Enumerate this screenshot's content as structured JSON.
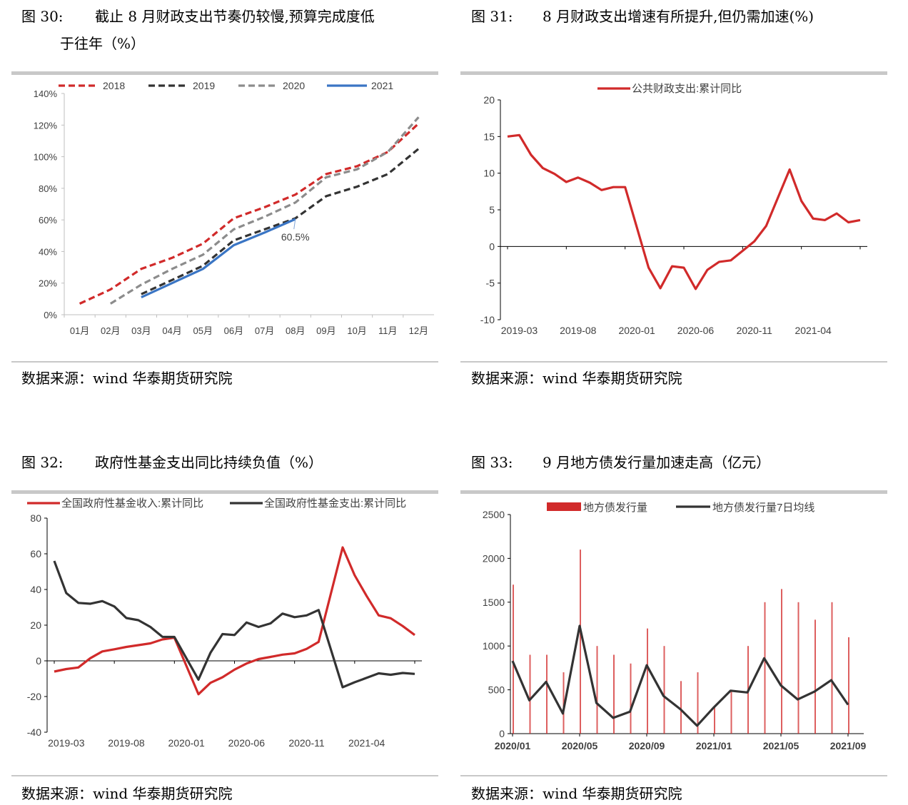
{
  "figures": [
    {
      "num": "图 30:",
      "title_line1": "截止 8 月财政支出节奏仍较慢,预算完成度低",
      "title_line2": "于往年（%）",
      "source": "数据来源：wind  华泰期货研究院"
    },
    {
      "num": "图 31:",
      "title_line1": "8 月财政支出增速有所提升,但仍需加速(%)",
      "source": "数据来源：wind  华泰期货研究院"
    },
    {
      "num": "图 32:",
      "title_line1": "政府性基金支出同比持续负值（%）",
      "source": "数据来源：wind  华泰期货研究院"
    },
    {
      "num": "图 33:",
      "title_line1": "9 月地方债发行量加速走高（亿元）",
      "source": "数据来源：wind  华泰期货研究院"
    }
  ],
  "chart_data": [
    {
      "type": "line",
      "categories": [
        "01月",
        "02月",
        "03月",
        "04月",
        "05月",
        "06月",
        "07月",
        "08月",
        "09月",
        "10月",
        "11月",
        "12月"
      ],
      "ylim": [
        0,
        140
      ],
      "yticks": [
        0,
        20,
        40,
        60,
        80,
        100,
        120,
        140
      ],
      "ytick_labels": [
        "0%",
        "20%",
        "40%",
        "60%",
        "80%",
        "100%",
        "120%",
        "140%"
      ],
      "annotation": "60.5%",
      "series": [
        {
          "name": "2018",
          "color": "#d12a2a",
          "dashed": true,
          "values": [
            7,
            16,
            29,
            36,
            45,
            61,
            68,
            76,
            89,
            94,
            103,
            121
          ]
        },
        {
          "name": "2019",
          "color": "#333333",
          "dashed": true,
          "values": [
            null,
            null,
            13,
            22,
            31,
            47,
            54,
            61,
            75,
            81,
            89,
            105
          ]
        },
        {
          "name": "2020",
          "color": "#8c8c8c",
          "dashed": true,
          "values": [
            null,
            7,
            19,
            29,
            38,
            54,
            62,
            71,
            87,
            92,
            103,
            125
          ]
        },
        {
          "name": "2021",
          "color": "#3a75c4",
          "dashed": false,
          "values": [
            null,
            null,
            11,
            20,
            29,
            44,
            52,
            60.5,
            null,
            null,
            null,
            null
          ]
        }
      ]
    },
    {
      "type": "line",
      "xtick_labels": [
        "2019-03",
        "2019-08",
        "2020-01",
        "2020-06",
        "2020-11",
        "2021-04"
      ],
      "ylim": [
        -10,
        20
      ],
      "yticks": [
        -10,
        -5,
        0,
        5,
        10,
        15,
        20
      ],
      "series": [
        {
          "name": "公共财政支出:累计同比",
          "color": "#d12a2a",
          "x": [
            "2019-02",
            "2019-03",
            "2019-04",
            "2019-05",
            "2019-06",
            "2019-07",
            "2019-08",
            "2019-09",
            "2019-10",
            "2019-11",
            "2019-12",
            "2020-02",
            "2020-03",
            "2020-04",
            "2020-05",
            "2020-06",
            "2020-07",
            "2020-08",
            "2020-09",
            "2020-10",
            "2020-11",
            "2020-12",
            "2021-02",
            "2021-03",
            "2021-04",
            "2021-05",
            "2021-06",
            "2021-07",
            "2021-08"
          ],
          "values": [
            15.0,
            15.2,
            12.5,
            10.7,
            9.9,
            8.8,
            9.4,
            8.7,
            7.7,
            8.1,
            8.1,
            -2.9,
            -5.7,
            -2.7,
            -2.9,
            -5.8,
            -3.2,
            -2.1,
            -1.9,
            -0.6,
            0.7,
            2.8,
            10.5,
            6.2,
            3.8,
            3.6,
            4.5,
            3.3,
            3.6
          ]
        }
      ]
    },
    {
      "type": "line",
      "xtick_labels": [
        "2019-03",
        "2019-08",
        "2020-01",
        "2020-06",
        "2020-11",
        "2021-04"
      ],
      "ylim": [
        -40,
        80
      ],
      "yticks": [
        -40,
        -20,
        0,
        20,
        40,
        60,
        80
      ],
      "series": [
        {
          "name": "全国政府性基金收入:累计同比",
          "color": "#d12a2a",
          "x": [
            "2019-02",
            "2019-03",
            "2019-04",
            "2019-05",
            "2019-06",
            "2019-07",
            "2019-08",
            "2019-09",
            "2019-10",
            "2019-11",
            "2019-12",
            "2020-02",
            "2020-03",
            "2020-04",
            "2020-05",
            "2020-06",
            "2020-07",
            "2020-08",
            "2020-09",
            "2020-10",
            "2020-11",
            "2020-12",
            "2021-02",
            "2021-03",
            "2021-04",
            "2021-05",
            "2021-06",
            "2021-07",
            "2021-08"
          ],
          "values": [
            -6.0,
            -4.6,
            -3.7,
            1.5,
            5.3,
            6.5,
            7.8,
            8.8,
            9.8,
            12.0,
            13.0,
            -18.7,
            -12.3,
            -9.2,
            -4.9,
            -1.5,
            1.0,
            2.2,
            3.5,
            4.2,
            6.7,
            10.6,
            63.6,
            48.0,
            36.3,
            25.5,
            23.9,
            19.5,
            14.5
          ]
        },
        {
          "name": "全国政府性基金支出:累计同比",
          "color": "#333333",
          "x": [
            "2019-02",
            "2019-03",
            "2019-04",
            "2019-05",
            "2019-06",
            "2019-07",
            "2019-08",
            "2019-09",
            "2019-10",
            "2019-11",
            "2019-12",
            "2020-02",
            "2020-03",
            "2020-04",
            "2020-05",
            "2020-06",
            "2020-07",
            "2020-08",
            "2020-09",
            "2020-10",
            "2020-11",
            "2020-12",
            "2021-02",
            "2021-03",
            "2021-04",
            "2021-05",
            "2021-06",
            "2021-07",
            "2021-08"
          ],
          "values": [
            56.0,
            38.0,
            32.5,
            32.0,
            33.5,
            30.5,
            24.0,
            22.8,
            19.0,
            13.5,
            13.4,
            -10.5,
            4.5,
            15.0,
            14.5,
            21.5,
            19.0,
            21.0,
            26.5,
            24.5,
            25.5,
            28.5,
            -14.8,
            -12.0,
            -9.5,
            -7.0,
            -7.8,
            -6.8,
            -7.3
          ]
        }
      ]
    },
    {
      "type": "bar+line",
      "xtick_labels": [
        "2020/01",
        "2020/05",
        "2020/09",
        "2021/01",
        "2021/05",
        "2021/09"
      ],
      "ylim": [
        0,
        2500
      ],
      "yticks": [
        0,
        500,
        1000,
        1500,
        2000,
        2500
      ],
      "series": [
        {
          "name": "地方债发行量",
          "kind": "bar",
          "color": "#d12a2a",
          "x": [
            "2020-01",
            "2020-02",
            "2020-03",
            "2020-04",
            "2020-05",
            "2020-06",
            "2020-07",
            "2020-08",
            "2020-09",
            "2020-10",
            "2020-11",
            "2020-12",
            "2021-01",
            "2021-02",
            "2021-03",
            "2021-04",
            "2021-05",
            "2021-06",
            "2021-07",
            "2021-08",
            "2021-09"
          ],
          "values": [
            1700,
            900,
            900,
            700,
            2100,
            1000,
            900,
            800,
            1200,
            1000,
            600,
            700,
            300,
            500,
            1000,
            1500,
            1650,
            1500,
            1300,
            1500,
            1100
          ]
        },
        {
          "name": "地方债发行量7日均线",
          "kind": "line",
          "color": "#333333",
          "x": [
            "2020-01",
            "2020-02",
            "2020-03",
            "2020-04",
            "2020-05",
            "2020-06",
            "2020-07",
            "2020-08",
            "2020-09",
            "2020-10",
            "2020-11",
            "2020-12",
            "2021-01",
            "2021-02",
            "2021-03",
            "2021-04",
            "2021-05",
            "2021-06",
            "2021-07",
            "2021-08",
            "2021-09"
          ],
          "values": [
            830,
            380,
            590,
            230,
            1230,
            350,
            180,
            250,
            780,
            430,
            280,
            90,
            300,
            490,
            470,
            860,
            550,
            390,
            480,
            610,
            330
          ]
        }
      ]
    }
  ]
}
